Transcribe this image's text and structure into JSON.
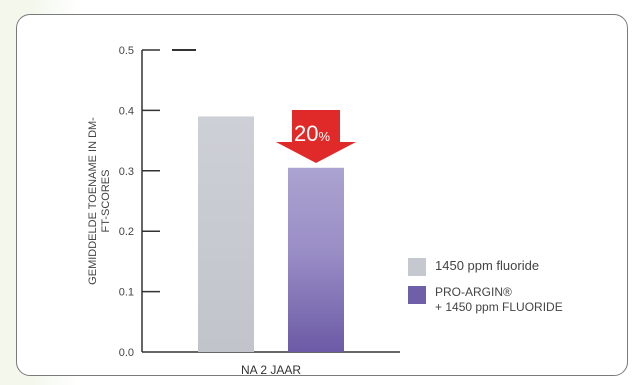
{
  "chart_data": {
    "type": "bar",
    "ylabel": "GEMIDDELDE TOENAME IN DM-FT-SCORES",
    "ylim": [
      0,
      0.5
    ],
    "yticks": [
      "0.0",
      "0.1",
      "0.2",
      "0.3",
      "0.4",
      "0.5"
    ],
    "categories": [
      "NA 2 JAAR"
    ],
    "series": [
      {
        "name": "1450 ppm fluoride",
        "values": [
          0.39
        ],
        "color": "#c5c8cf"
      },
      {
        "name": "PRO-ARGIN®\n+ 1450 ppm FLUORIDE",
        "values": [
          0.305
        ],
        "color": "#7a6aae"
      }
    ],
    "annotation": {
      "text": "20",
      "suffix": "%",
      "color": "#e02a2a"
    },
    "grid": false,
    "legend_position": "right"
  }
}
